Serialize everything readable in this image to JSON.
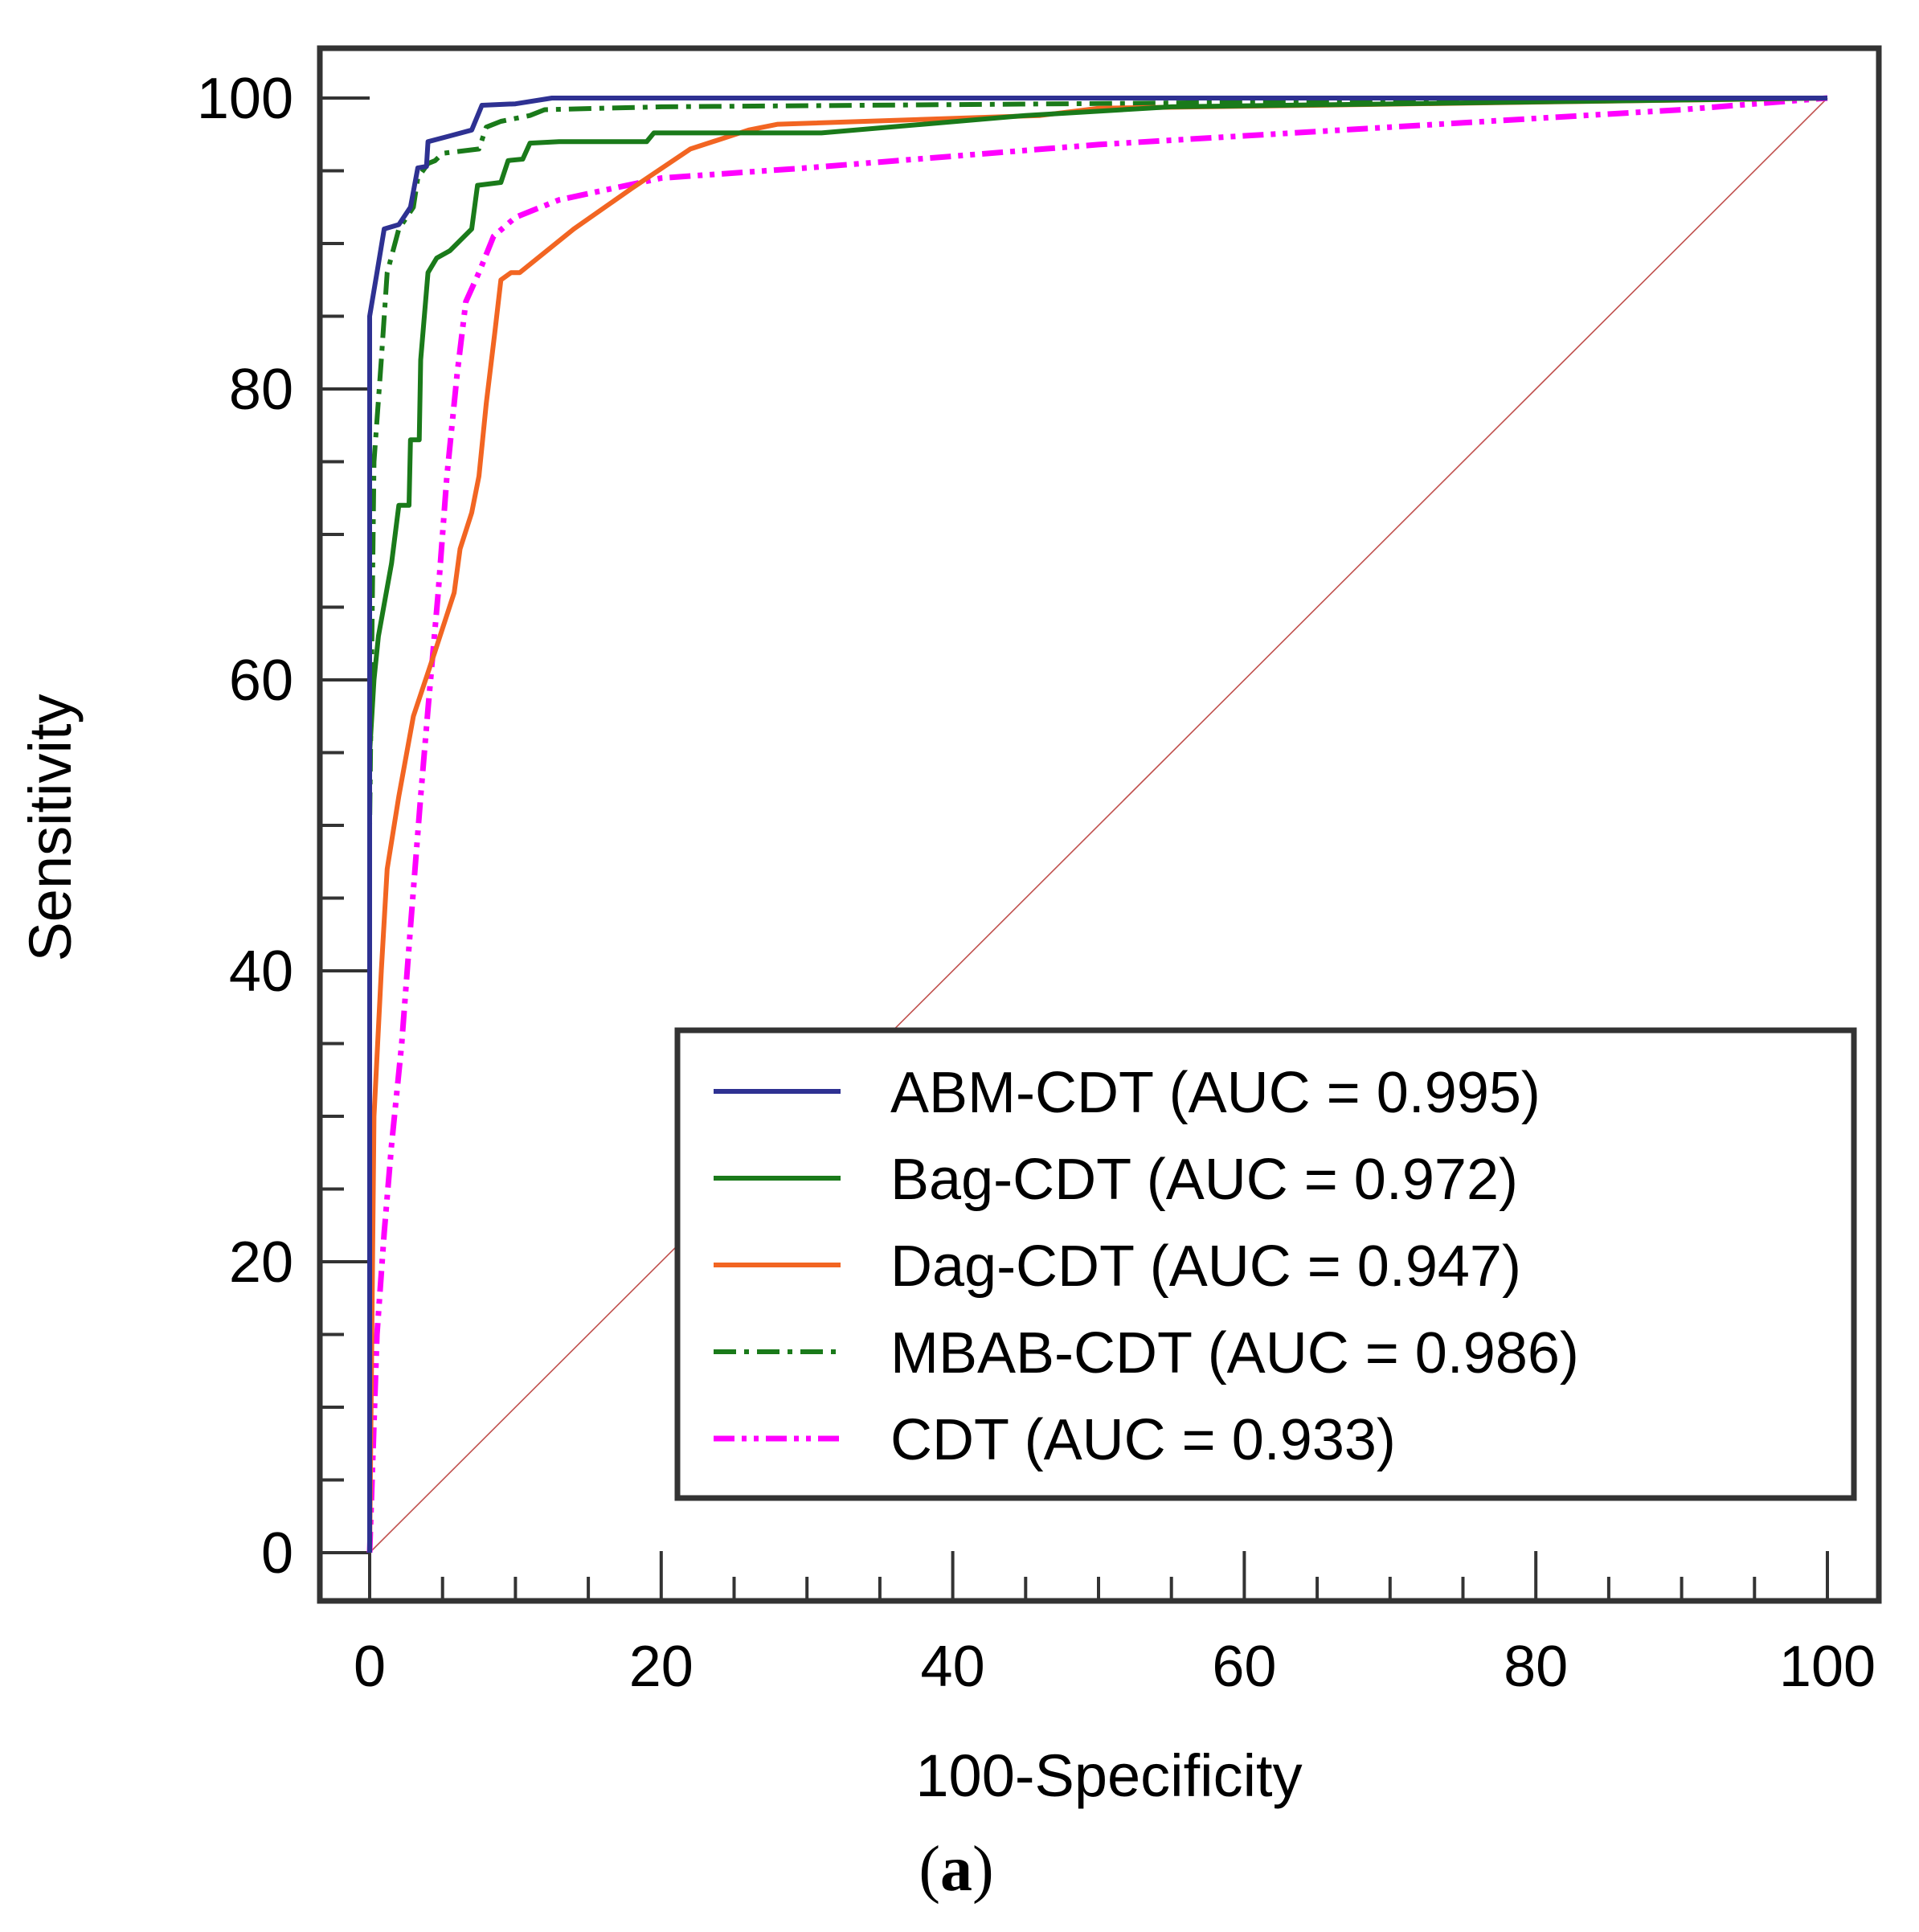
{
  "chart_data": {
    "type": "line",
    "xlabel": "100-Specificity",
    "ylabel": "Sensitivity",
    "xlim": [
      0,
      100
    ],
    "ylim": [
      0,
      100
    ],
    "x_ticks": [
      "0",
      "20",
      "40",
      "60",
      "80",
      "100"
    ],
    "y_ticks": [
      "0",
      "20",
      "40",
      "60",
      "80",
      "100"
    ],
    "grid": false,
    "legend_position": "bottom-right",
    "caption": {
      "open": "(",
      "letter": "a",
      "close": ")"
    },
    "reference_line": {
      "name": "chance diagonal",
      "color": "#c0504d",
      "points": [
        [
          0,
          0
        ],
        [
          100,
          100
        ]
      ]
    },
    "series": [
      {
        "name": "ABM-CDT (AUC = 0.995)",
        "color": "#2e3192",
        "dash": "solid",
        "points": [
          [
            0,
            0
          ],
          [
            0,
            85
          ],
          [
            0.5,
            88
          ],
          [
            1,
            91
          ],
          [
            2,
            91.3
          ],
          [
            2.8,
            92.5
          ],
          [
            3.3,
            95.2
          ],
          [
            3.9,
            95.3
          ],
          [
            4,
            97
          ],
          [
            5.5,
            97.4
          ],
          [
            7,
            97.8
          ],
          [
            7.7,
            99.5
          ],
          [
            10,
            99.6
          ],
          [
            12.5,
            100
          ],
          [
            100,
            100
          ]
        ]
      },
      {
        "name": "Bag-CDT (AUC = 0.972)",
        "color": "#1a7a1a",
        "dash": "solid",
        "points": [
          [
            0,
            0
          ],
          [
            0,
            55
          ],
          [
            0.3,
            60
          ],
          [
            0.6,
            63
          ],
          [
            1.5,
            68
          ],
          [
            2,
            72
          ],
          [
            2.7,
            72
          ],
          [
            2.8,
            76.5
          ],
          [
            3.4,
            76.5
          ],
          [
            3.5,
            82
          ],
          [
            4,
            88
          ],
          [
            4.6,
            89
          ],
          [
            5.5,
            89.5
          ],
          [
            7,
            91
          ],
          [
            7.4,
            94
          ],
          [
            9,
            94.2
          ],
          [
            9.5,
            95.7
          ],
          [
            10.5,
            95.8
          ],
          [
            11,
            96.9
          ],
          [
            13,
            97
          ],
          [
            19,
            97
          ],
          [
            19.5,
            97.6
          ],
          [
            31,
            97.6
          ],
          [
            45,
            98.8
          ],
          [
            55,
            99.4
          ],
          [
            100,
            100
          ]
        ]
      },
      {
        "name": "Dag-CDT (AUC = 0.947)",
        "color": "#f26522",
        "dash": "solid",
        "points": [
          [
            0,
            0
          ],
          [
            0.3,
            30
          ],
          [
            0.8,
            40
          ],
          [
            1.2,
            47
          ],
          [
            2,
            52
          ],
          [
            3,
            57.5
          ],
          [
            4.5,
            62
          ],
          [
            5.8,
            66
          ],
          [
            6.2,
            69
          ],
          [
            7,
            71.5
          ],
          [
            7.5,
            74
          ],
          [
            8,
            79
          ],
          [
            8.6,
            84
          ],
          [
            9,
            87.5
          ],
          [
            9.7,
            88
          ],
          [
            10.3,
            88
          ],
          [
            14,
            91
          ],
          [
            18,
            93.8
          ],
          [
            22,
            96.5
          ],
          [
            26,
            97.8
          ],
          [
            28,
            98.2
          ],
          [
            46,
            98.8
          ],
          [
            50,
            99.3
          ],
          [
            100,
            100
          ]
        ]
      },
      {
        "name": "MBAB-CDT (AUC = 0.986)",
        "color": "#1a7a1a",
        "dash": "dashdot",
        "points": [
          [
            0,
            0
          ],
          [
            0,
            50
          ],
          [
            0.3,
            75
          ],
          [
            0.8,
            82
          ],
          [
            1.2,
            88
          ],
          [
            2,
            91
          ],
          [
            3,
            92.5
          ],
          [
            3.3,
            94.5
          ],
          [
            4,
            95.5
          ],
          [
            4.5,
            95.7
          ],
          [
            5,
            96.2
          ],
          [
            7.5,
            96.5
          ],
          [
            8,
            98
          ],
          [
            9,
            98.4
          ],
          [
            11,
            98.8
          ],
          [
            12,
            99.2
          ],
          [
            20,
            99.4
          ],
          [
            100,
            100
          ]
        ]
      },
      {
        "name": "CDT (AUC = 0.933)",
        "color": "#ff00ff",
        "dash": "dashdotdot",
        "points": [
          [
            0,
            0
          ],
          [
            0.5,
            15
          ],
          [
            1,
            22
          ],
          [
            1.5,
            28
          ],
          [
            2.2,
            35
          ],
          [
            2.8,
            43
          ],
          [
            3.5,
            52
          ],
          [
            4,
            58
          ],
          [
            4.7,
            66
          ],
          [
            5.3,
            74
          ],
          [
            6,
            81
          ],
          [
            6.6,
            86
          ],
          [
            7.5,
            88
          ],
          [
            8.5,
            90.5
          ],
          [
            10,
            91.8
          ],
          [
            13,
            93
          ],
          [
            20,
            94.5
          ],
          [
            30,
            95.2
          ],
          [
            50,
            96.8
          ],
          [
            70,
            98
          ],
          [
            90,
            99.2
          ],
          [
            100,
            100
          ]
        ]
      }
    ]
  }
}
